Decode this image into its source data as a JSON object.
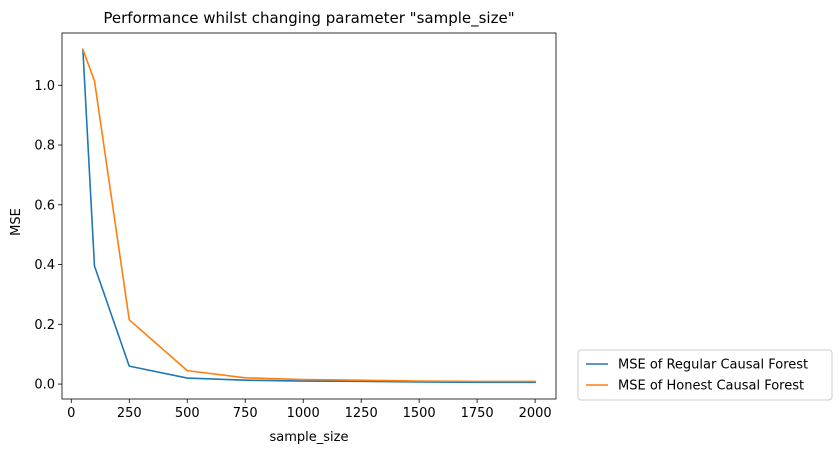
{
  "chart_data": {
    "type": "line",
    "title": "Performance whilst changing parameter \"sample_size\"",
    "xlabel": "sample_size",
    "ylabel": "MSE",
    "x": [
      50,
      100,
      250,
      500,
      750,
      1000,
      1250,
      1500,
      1750,
      2000
    ],
    "xlim": [
      -40,
      2090
    ],
    "ylim": [
      -0.05,
      1.175
    ],
    "xticks": [
      0,
      250,
      500,
      750,
      1000,
      1250,
      1500,
      1750,
      2000
    ],
    "xtick_labels": [
      "0",
      "250",
      "500",
      "750",
      "1000",
      "1250",
      "1500",
      "1750",
      "2000"
    ],
    "yticks": [
      0.0,
      0.2,
      0.4,
      0.6,
      0.8,
      1.0
    ],
    "ytick_labels": [
      "0.0",
      "0.2",
      "0.4",
      "0.6",
      "0.8",
      "1.0"
    ],
    "grid": false,
    "legend_position": "outside-bottom-right",
    "series": [
      {
        "name": "MSE of Regular Causal Forest",
        "color": "#1f77b4",
        "values": [
          1.12,
          0.395,
          0.06,
          0.02,
          0.013,
          0.01,
          0.009,
          0.007,
          0.006,
          0.006
        ]
      },
      {
        "name": "MSE of Honest Causal Forest",
        "color": "#ff7f0e",
        "values": [
          1.12,
          1.015,
          0.215,
          0.045,
          0.021,
          0.015,
          0.013,
          0.01,
          0.009,
          0.009
        ]
      }
    ]
  }
}
